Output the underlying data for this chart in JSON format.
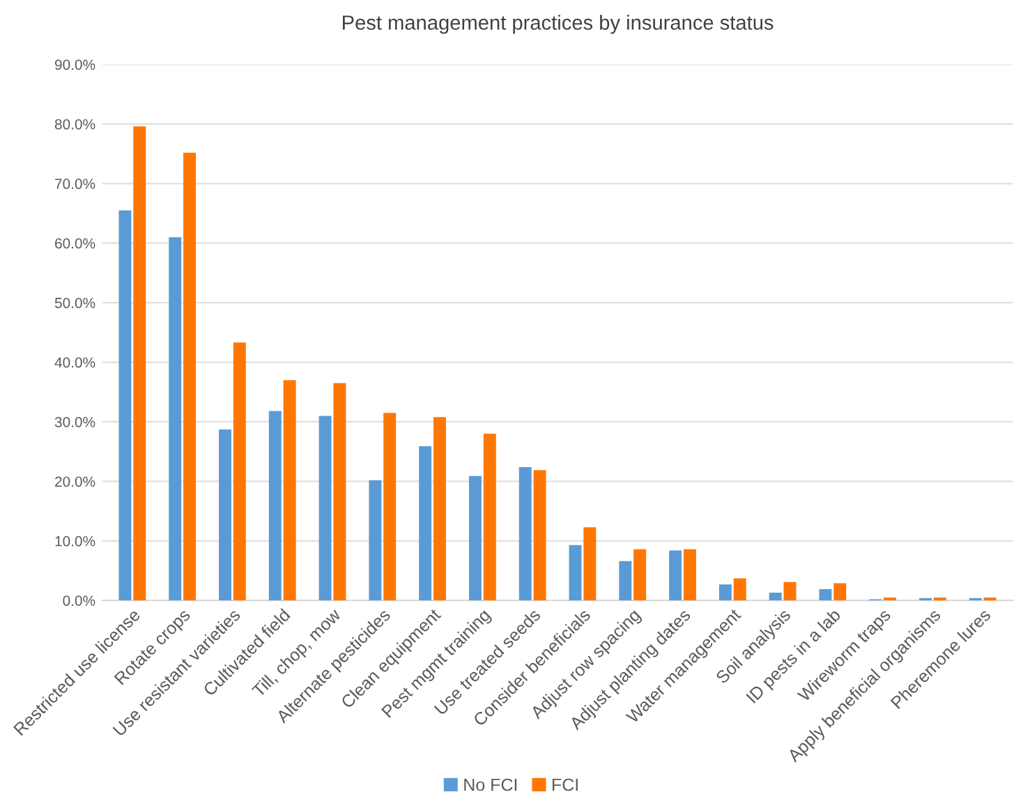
{
  "chart_data": {
    "type": "bar",
    "title": "Pest management practices by insurance status",
    "categories": [
      "Restricted use license",
      "Rotate crops",
      "Use resistant varieties",
      "Cultivated field",
      "Till, chop, mow",
      "Alternate pesticides",
      "Clean equipment",
      "Pest mgmt training",
      "Use treated seeds",
      "Consider beneficials",
      "Adjust row spacing",
      "Adjust planting dates",
      "Water management",
      "Soil analysis",
      "ID pests in a lab",
      "Wireworm traps",
      "Apply beneficial organisms",
      "Pheremone lures"
    ],
    "series": [
      {
        "name": "No FCI",
        "color": "#5b9bd5",
        "values": [
          65.5,
          61.0,
          28.7,
          31.8,
          31.0,
          20.2,
          25.9,
          20.9,
          22.4,
          9.3,
          6.6,
          8.4,
          2.7,
          1.3,
          1.9,
          0.2,
          0.4,
          0.4
        ]
      },
      {
        "name": "FCI",
        "color": "#ff7700",
        "values": [
          79.6,
          75.2,
          43.3,
          37.0,
          36.5,
          31.5,
          30.8,
          28.0,
          21.9,
          12.3,
          8.6,
          8.6,
          3.7,
          3.1,
          2.9,
          0.5,
          0.5,
          0.5
        ]
      }
    ],
    "ylim": [
      0,
      90
    ],
    "yticks": [
      {
        "value": 0,
        "label": "0.0%"
      },
      {
        "value": 10,
        "label": "10.0%"
      },
      {
        "value": 20,
        "label": "20.0%"
      },
      {
        "value": 30,
        "label": "30.0%"
      },
      {
        "value": 40,
        "label": "40.0%"
      },
      {
        "value": 50,
        "label": "50.0%"
      },
      {
        "value": 60,
        "label": "60.0%"
      },
      {
        "value": 70,
        "label": "70.0%"
      },
      {
        "value": 80,
        "label": "80.0%"
      },
      {
        "value": 90,
        "label": "90.0%"
      }
    ],
    "grid": "y",
    "legend": "bottom"
  }
}
